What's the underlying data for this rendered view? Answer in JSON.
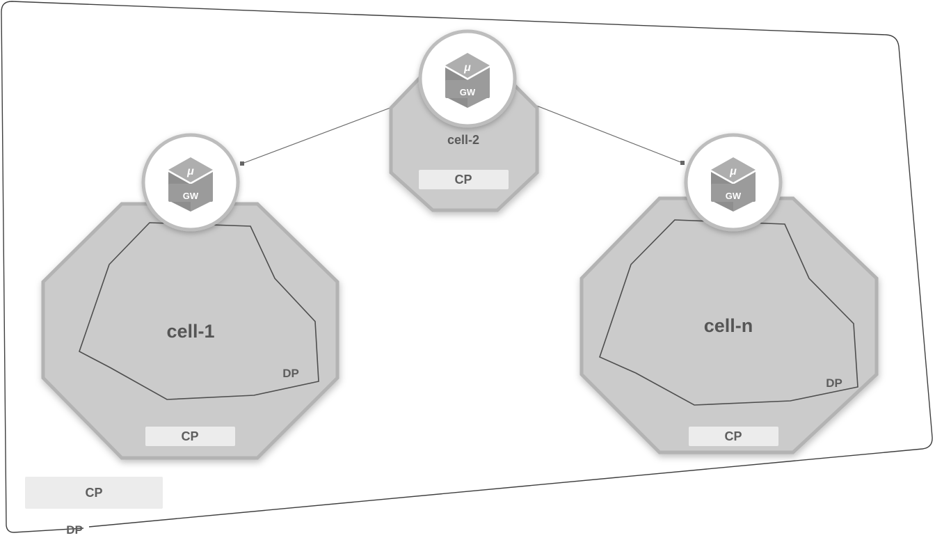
{
  "outer": {
    "cp_label": "CP",
    "dp_label": "DP"
  },
  "cells": [
    {
      "id": "cell-1",
      "title": "cell-1",
      "dp_label": "DP",
      "cp_label": "CP",
      "gateway": {
        "mu": "μ",
        "label": "GW"
      }
    },
    {
      "id": "cell-2",
      "title": "cell-2",
      "cp_label": "CP",
      "gateway": {
        "mu": "μ",
        "label": "GW"
      }
    },
    {
      "id": "cell-n",
      "title": "cell-n",
      "dp_label": "DP",
      "cp_label": "CP",
      "gateway": {
        "mu": "μ",
        "label": "GW"
      }
    }
  ],
  "connections": [
    {
      "from": "cell-2",
      "to": "cell-1"
    },
    {
      "from": "cell-2",
      "to": "cell-n"
    }
  ],
  "colors": {
    "cell_fill": "#cbcbcb",
    "cell_border": "#b3b3b3",
    "cp_box": "#ececec",
    "outline": "#4e4e4e"
  }
}
